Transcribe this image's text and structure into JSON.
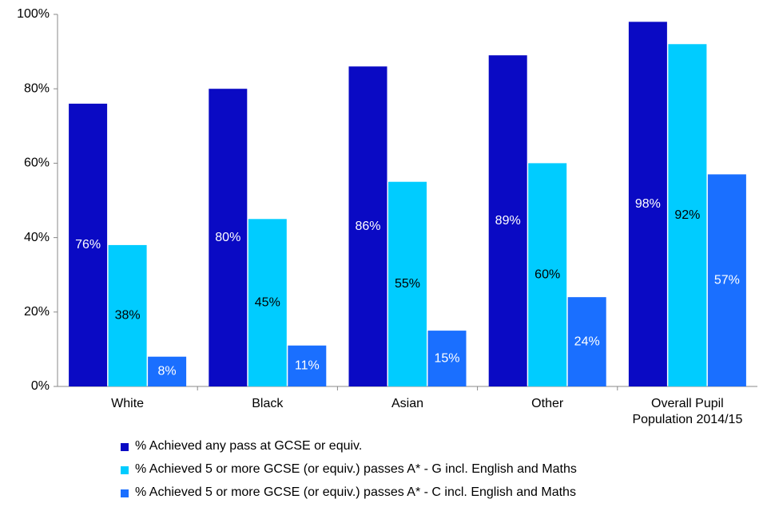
{
  "chart_data": {
    "type": "bar",
    "categories": [
      "White",
      "Black",
      "Asian",
      "Other",
      "Overall Pupil Population 2014/15"
    ],
    "series": [
      {
        "name": "% Achieved any pass at GCSE or equiv.",
        "color": "#0a0ac4",
        "label_color": "#ffffff",
        "values": [
          76,
          80,
          86,
          89,
          98
        ],
        "value_labels": [
          "76%",
          "80%",
          "86%",
          "89%",
          "98%"
        ]
      },
      {
        "name": "% Achieved 5 or more GCSE (or equiv.) passes A* - G incl. English and Maths",
        "color": "#00ccff",
        "label_color": "#000000",
        "values": [
          38,
          45,
          55,
          60,
          92
        ],
        "value_labels": [
          "38%",
          "45%",
          "55%",
          "60%",
          "92%"
        ]
      },
      {
        "name": "% Achieved 5 or more GCSE (or equiv.) passes A* - C incl. English and Maths",
        "color": "#1a6fff",
        "label_color": "#ffffff",
        "values": [
          8,
          11,
          15,
          24,
          57
        ],
        "value_labels": [
          "8%",
          "11%",
          "15%",
          "24%",
          "57%"
        ]
      }
    ],
    "ylim": [
      0,
      100
    ],
    "yticks": [
      {
        "value": 0,
        "label": "0%"
      },
      {
        "value": 20,
        "label": "20%"
      },
      {
        "value": 40,
        "label": "40%"
      },
      {
        "value": 60,
        "label": "60%"
      },
      {
        "value": 80,
        "label": "80%"
      },
      {
        "value": 100,
        "label": "100%"
      }
    ],
    "grid": false
  }
}
